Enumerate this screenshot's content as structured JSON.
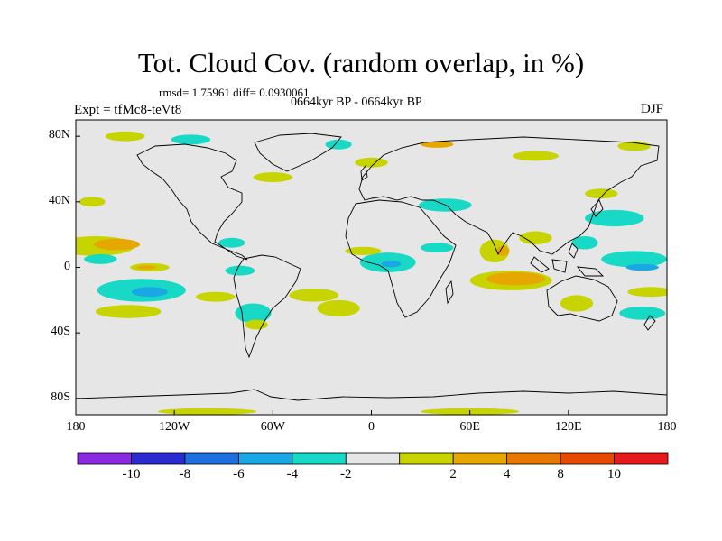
{
  "title": "Tot. Cloud Cov. (random overlap, in %)",
  "stats_line": "rmsd= 1.75961 diff= 0.0930061",
  "period_line": "0664kyr BP - 0664kyr BP",
  "experiment_label": "Expt = tfMc8-teVt8",
  "season_label": "DJF",
  "map": {
    "projection": "cylindrical equidistant",
    "lon_range": [
      -180,
      180
    ],
    "lat_range": [
      -90,
      90
    ],
    "background_color": "#e6e6e6",
    "lat_ticks": [
      {
        "value": 80,
        "label": "80N"
      },
      {
        "value": 40,
        "label": "40N"
      },
      {
        "value": 0,
        "label": "0"
      },
      {
        "value": -40,
        "label": "40S"
      },
      {
        "value": -80,
        "label": "80S"
      }
    ],
    "lon_ticks": [
      {
        "value": -180,
        "label": "180"
      },
      {
        "value": -120,
        "label": "120W"
      },
      {
        "value": -60,
        "label": "60W"
      },
      {
        "value": 0,
        "label": "0"
      },
      {
        "value": 60,
        "label": "60E"
      },
      {
        "value": 120,
        "label": "120E"
      },
      {
        "value": 180,
        "label": "180"
      }
    ],
    "anomaly_regions": [
      {
        "lon": -168,
        "lat": 13,
        "rlon": 24,
        "rlat": 6,
        "level": 2
      },
      {
        "lon": -155,
        "lat": 14,
        "rlon": 14,
        "rlat": 3.5,
        "level": 4
      },
      {
        "lon": -135,
        "lat": 0,
        "rlon": 12,
        "rlat": 2.5,
        "level": 2
      },
      {
        "lon": -137,
        "lat": 0,
        "rlon": 6,
        "rlat": 1.2,
        "level": 4
      },
      {
        "lon": -140,
        "lat": -14,
        "rlon": 27,
        "rlat": 7,
        "level": -2
      },
      {
        "lon": -135,
        "lat": -15,
        "rlon": 11,
        "rlat": 3,
        "level": -4
      },
      {
        "lon": -148,
        "lat": -27,
        "rlon": 20,
        "rlat": 4,
        "level": 2
      },
      {
        "lon": -165,
        "lat": 5,
        "rlon": 10,
        "rlat": 3,
        "level": -2
      },
      {
        "lon": -80,
        "lat": -2,
        "rlon": 9,
        "rlat": 3,
        "level": -2
      },
      {
        "lon": -72,
        "lat": -28,
        "rlon": 11,
        "rlat": 6,
        "level": -2
      },
      {
        "lon": -70,
        "lat": -35,
        "rlon": 7,
        "rlat": 3,
        "level": 2
      },
      {
        "lon": -95,
        "lat": -18,
        "rlon": 12,
        "rlat": 3,
        "level": 2
      },
      {
        "lon": -35,
        "lat": -17,
        "rlon": 15,
        "rlat": 4,
        "level": 2
      },
      {
        "lon": -20,
        "lat": -25,
        "rlon": 13,
        "rlat": 5,
        "level": 2
      },
      {
        "lon": -85,
        "lat": 15,
        "rlon": 8,
        "rlat": 3,
        "level": -2
      },
      {
        "lon": 10,
        "lat": 3,
        "rlon": 17,
        "rlat": 6,
        "level": -2
      },
      {
        "lon": 12,
        "lat": 2,
        "rlon": 6,
        "rlat": 2,
        "level": -4
      },
      {
        "lon": -5,
        "lat": 10,
        "rlon": 11,
        "rlat": 2.5,
        "level": 2
      },
      {
        "lon": 45,
        "lat": 38,
        "rlon": 16,
        "rlat": 4,
        "level": -2
      },
      {
        "lon": 40,
        "lat": 12,
        "rlon": 10,
        "rlat": 3,
        "level": -2
      },
      {
        "lon": 85,
        "lat": -8,
        "rlon": 25,
        "rlat": 6,
        "level": 2
      },
      {
        "lon": 88,
        "lat": -7,
        "rlon": 18,
        "rlat": 4,
        "level": 4
      },
      {
        "lon": 75,
        "lat": 10,
        "rlon": 9,
        "rlat": 7,
        "level": 2
      },
      {
        "lon": 80,
        "lat": 10,
        "rlon": 4,
        "rlat": 3,
        "level": 4
      },
      {
        "lon": 100,
        "lat": 18,
        "rlon": 10,
        "rlat": 4,
        "level": 2
      },
      {
        "lon": 160,
        "lat": 5,
        "rlon": 20,
        "rlat": 5,
        "level": -2
      },
      {
        "lon": 165,
        "lat": 0,
        "rlon": 10,
        "rlat": 2,
        "level": -4
      },
      {
        "lon": 148,
        "lat": 30,
        "rlon": 18,
        "rlat": 5,
        "level": -2
      },
      {
        "lon": 130,
        "lat": 15,
        "rlon": 8,
        "rlat": 4,
        "level": -2
      },
      {
        "lon": 170,
        "lat": -15,
        "rlon": 14,
        "rlat": 3,
        "level": 2
      },
      {
        "lon": 125,
        "lat": -22,
        "rlon": 10,
        "rlat": 5,
        "level": 2
      },
      {
        "lon": 140,
        "lat": 45,
        "rlon": 10,
        "rlat": 3,
        "level": 2
      },
      {
        "lon": 165,
        "lat": -28,
        "rlon": 14,
        "rlat": 4,
        "level": -2
      },
      {
        "lon": -150,
        "lat": 80,
        "rlon": 12,
        "rlat": 3,
        "level": 2
      },
      {
        "lon": -110,
        "lat": 78,
        "rlon": 12,
        "rlat": 3,
        "level": -2
      },
      {
        "lon": -20,
        "lat": 75,
        "rlon": 8,
        "rlat": 3,
        "level": -2
      },
      {
        "lon": 40,
        "lat": 75,
        "rlon": 10,
        "rlat": 2,
        "level": 4
      },
      {
        "lon": 100,
        "lat": 68,
        "rlon": 14,
        "rlat": 3,
        "level": 2
      },
      {
        "lon": 160,
        "lat": 74,
        "rlon": 10,
        "rlat": 3,
        "level": 2
      },
      {
        "lon": -60,
        "lat": 55,
        "rlon": 12,
        "rlat": 3,
        "level": 2
      },
      {
        "lon": 0,
        "lat": 64,
        "rlon": 10,
        "rlat": 3,
        "level": 2
      },
      {
        "lon": -170,
        "lat": 40,
        "rlon": 8,
        "rlat": 3,
        "level": 2
      },
      {
        "lon": -100,
        "lat": -88,
        "rlon": 30,
        "rlat": 2,
        "level": 2
      },
      {
        "lon": 60,
        "lat": -88,
        "rlon": 30,
        "rlat": 2,
        "level": 2
      }
    ]
  },
  "colorbar": {
    "colors": [
      "#8a2be2",
      "#2b2bcf",
      "#1f6fe0",
      "#19a7e6",
      "#17d9c5",
      "#e6e6e6",
      "#c8d400",
      "#e6a800",
      "#e67800",
      "#e64a00",
      "#e61a1a"
    ],
    "labels": [
      "-10",
      "-8",
      "-6",
      "-4",
      "-2",
      "2",
      "4",
      "8",
      "10"
    ]
  },
  "level_colors": {
    "-4": "#19a7e6",
    "-2": "#17d9c5",
    "2": "#c8d400",
    "4": "#e6a800"
  }
}
